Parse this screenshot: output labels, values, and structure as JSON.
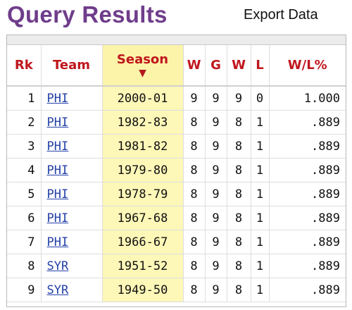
{
  "header": {
    "title": "Query Results",
    "export_label": "Export Data"
  },
  "table": {
    "columns": [
      {
        "key": "rk",
        "label": "Rk"
      },
      {
        "key": "team",
        "label": "Team"
      },
      {
        "key": "season",
        "label": "Season"
      },
      {
        "key": "w",
        "label": "W"
      },
      {
        "key": "g",
        "label": "G"
      },
      {
        "key": "w2",
        "label": "W"
      },
      {
        "key": "l",
        "label": "L"
      },
      {
        "key": "pct",
        "label": "W/L%"
      }
    ],
    "sorted_column": "season",
    "sort_direction": "descending",
    "rows": [
      {
        "rk": "1",
        "team": "PHI",
        "season": "2000-01",
        "w": "9",
        "g": "9",
        "w2": "9",
        "l": "0",
        "pct": "1.000"
      },
      {
        "rk": "2",
        "team": "PHI",
        "season": "1982-83",
        "w": "8",
        "g": "9",
        "w2": "8",
        "l": "1",
        "pct": ".889"
      },
      {
        "rk": "3",
        "team": "PHI",
        "season": "1981-82",
        "w": "8",
        "g": "9",
        "w2": "8",
        "l": "1",
        "pct": ".889"
      },
      {
        "rk": "4",
        "team": "PHI",
        "season": "1979-80",
        "w": "8",
        "g": "9",
        "w2": "8",
        "l": "1",
        "pct": ".889"
      },
      {
        "rk": "5",
        "team": "PHI",
        "season": "1978-79",
        "w": "8",
        "g": "9",
        "w2": "8",
        "l": "1",
        "pct": ".889"
      },
      {
        "rk": "6",
        "team": "PHI",
        "season": "1967-68",
        "w": "8",
        "g": "9",
        "w2": "8",
        "l": "1",
        "pct": ".889"
      },
      {
        "rk": "7",
        "team": "PHI",
        "season": "1966-67",
        "w": "8",
        "g": "9",
        "w2": "8",
        "l": "1",
        "pct": ".889"
      },
      {
        "rk": "8",
        "team": "SYR",
        "season": "1951-52",
        "w": "8",
        "g": "9",
        "w2": "8",
        "l": "1",
        "pct": ".889"
      },
      {
        "rk": "9",
        "team": "SYR",
        "season": "1949-50",
        "w": "8",
        "g": "9",
        "w2": "8",
        "l": "1",
        "pct": ".889"
      }
    ]
  },
  "colors": {
    "title": "#6f3d8b",
    "header_text": "#c0161d",
    "sorted_column_bg": "#fdf7b8",
    "link": "#2440a8"
  }
}
